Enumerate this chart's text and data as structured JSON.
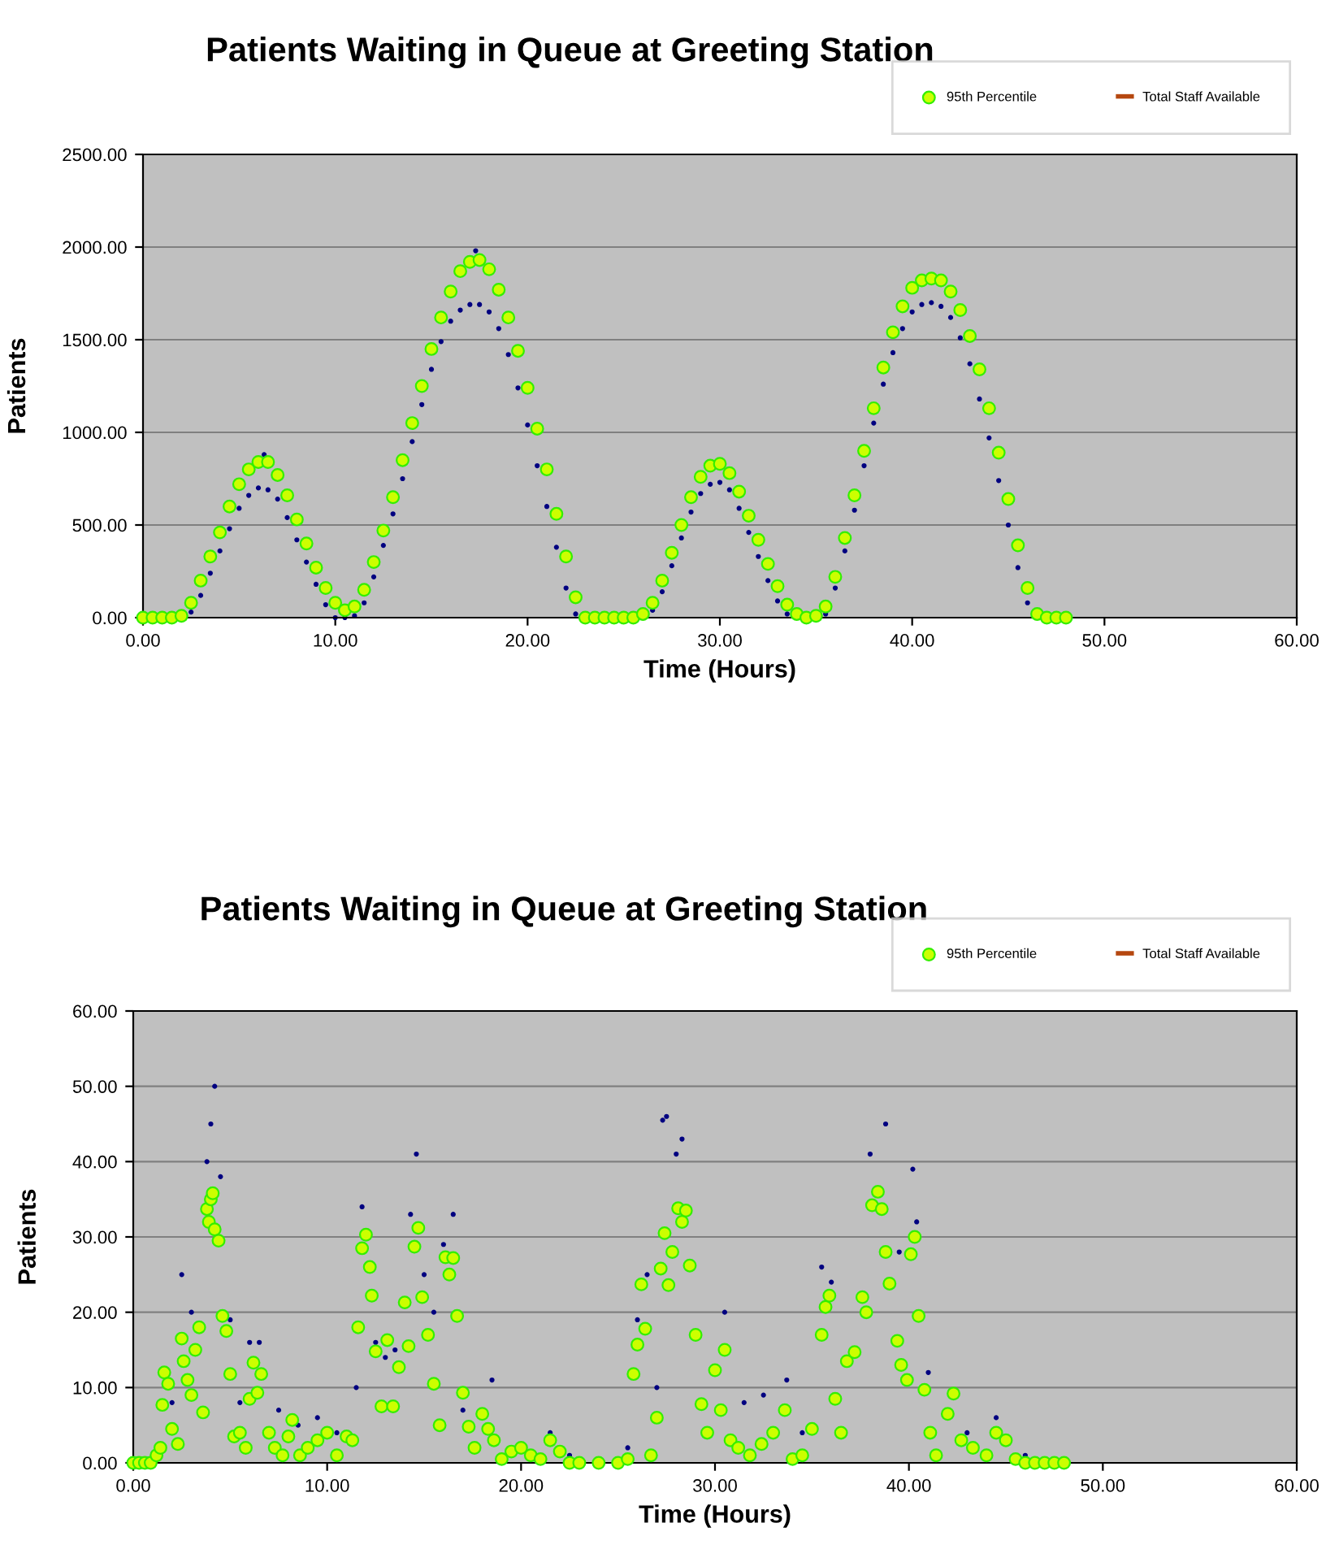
{
  "chart_data": [
    {
      "type": "scatter",
      "title": "Patients Waiting in Queue at Greeting Station",
      "xlabel": "Time (Hours)",
      "ylabel": "Patients",
      "xlim": [
        0,
        60
      ],
      "xticks": [
        {
          "value": 0,
          "label": "0.00"
        },
        {
          "value": 10,
          "label": "10.00"
        },
        {
          "value": 20,
          "label": "20.00"
        },
        {
          "value": 30,
          "label": "30.00"
        },
        {
          "value": 40,
          "label": "40.00"
        },
        {
          "value": 50,
          "label": "50.00"
        },
        {
          "value": 60,
          "label": "60.00"
        }
      ],
      "ylim": [
        0,
        2500
      ],
      "yticks": [
        {
          "value": 0,
          "label": "0.00"
        },
        {
          "value": 500,
          "label": "500.00"
        },
        {
          "value": 1000,
          "label": "1000.00"
        },
        {
          "value": 1500,
          "label": "1500.00"
        },
        {
          "value": 2000,
          "label": "2000.00"
        },
        {
          "value": 2500,
          "label": "2500.00"
        }
      ],
      "grid": "y",
      "legend": "top right",
      "series": [
        {
          "color": "#000080",
          "marker": "circle",
          "x": [
            2.5,
            3,
            3.5,
            4,
            4.5,
            5,
            5.5,
            6,
            6.3,
            6.5,
            7,
            7.5,
            8,
            8.5,
            9,
            9.5,
            10,
            10.5,
            11,
            11.5,
            12,
            12.5,
            13,
            13.5,
            14,
            14.5,
            15,
            15.5,
            16,
            16.5,
            17,
            17.3,
            17.5,
            18,
            18.5,
            19,
            19.5,
            20,
            20.5,
            21,
            21.5,
            22,
            22.5,
            26.5,
            27,
            27.5,
            28,
            28.5,
            29,
            29.5,
            30,
            30.5,
            31,
            31.5,
            32,
            32.5,
            33,
            33.5,
            35.5,
            36,
            36.5,
            37,
            37.5,
            38,
            38.5,
            39,
            39.5,
            40,
            40.5,
            41,
            41.5,
            42,
            42.5,
            43,
            43.5,
            44,
            44.5,
            45,
            45.5,
            46
          ],
          "values": [
            30,
            120,
            240,
            360,
            480,
            590,
            660,
            700,
            880,
            690,
            640,
            540,
            420,
            300,
            180,
            70,
            0,
            0,
            10,
            80,
            220,
            390,
            560,
            750,
            950,
            1150,
            1340,
            1490,
            1600,
            1660,
            1690,
            1980,
            1690,
            1650,
            1560,
            1420,
            1240,
            1040,
            820,
            600,
            380,
            160,
            20,
            40,
            140,
            280,
            430,
            570,
            670,
            720,
            730,
            690,
            590,
            460,
            330,
            200,
            90,
            20,
            20,
            160,
            360,
            580,
            820,
            1050,
            1260,
            1430,
            1560,
            1650,
            1690,
            1700,
            1680,
            1620,
            1510,
            1370,
            1180,
            970,
            740,
            500,
            270,
            80
          ]
        },
        {
          "name": "95th Percentile",
          "color": "#ccff00",
          "marker": "circle",
          "x": [
            0,
            0.5,
            1,
            1.5,
            2,
            2.5,
            3,
            3.5,
            4,
            4.5,
            5,
            5.5,
            6,
            6.5,
            7,
            7.5,
            8,
            8.5,
            9,
            9.5,
            10,
            10.5,
            11,
            11.5,
            12,
            12.5,
            13,
            13.5,
            14,
            14.5,
            15,
            15.5,
            16,
            16.5,
            17,
            17.5,
            18,
            18.5,
            19,
            19.5,
            20,
            20.5,
            21,
            21.5,
            22,
            22.5,
            23,
            23.5,
            24,
            24.5,
            25,
            25.5,
            26,
            26.5,
            27,
            27.5,
            28,
            28.5,
            29,
            29.5,
            30,
            30.5,
            31,
            31.5,
            32,
            32.5,
            33,
            33.5,
            34,
            34.5,
            35,
            35.5,
            36,
            36.5,
            37,
            37.5,
            38,
            38.5,
            39,
            39.5,
            40,
            40.5,
            41,
            41.5,
            42,
            42.5,
            43,
            43.5,
            44,
            44.5,
            45,
            45.5,
            46,
            46.5,
            47,
            47.5,
            48
          ],
          "values": [
            0,
            0,
            0,
            0,
            10,
            80,
            200,
            330,
            460,
            600,
            720,
            800,
            840,
            840,
            770,
            660,
            530,
            400,
            270,
            160,
            80,
            40,
            60,
            150,
            300,
            470,
            650,
            850,
            1050,
            1250,
            1450,
            1620,
            1760,
            1870,
            1920,
            1930,
            1880,
            1770,
            1620,
            1440,
            1240,
            1020,
            800,
            560,
            330,
            110,
            0,
            0,
            0,
            0,
            0,
            0,
            20,
            80,
            200,
            350,
            500,
            650,
            760,
            820,
            830,
            780,
            680,
            550,
            420,
            290,
            170,
            70,
            20,
            0,
            10,
            60,
            220,
            430,
            660,
            900,
            1130,
            1350,
            1540,
            1680,
            1780,
            1820,
            1830,
            1820,
            1760,
            1660,
            1520,
            1340,
            1130,
            890,
            640,
            390,
            160,
            20,
            0,
            0,
            0
          ]
        },
        {
          "type": "line",
          "name": "Total Staff Available",
          "color": "#b5470f",
          "marker": "none"
        }
      ]
    },
    {
      "type": "scatter",
      "title": "Patients Waiting in Queue at Greeting Station",
      "xlabel": "Time (Hours)",
      "ylabel": "Patients",
      "xlim": [
        0,
        60
      ],
      "xticks": [
        {
          "value": 0,
          "label": "0.00"
        },
        {
          "value": 10,
          "label": "10.00"
        },
        {
          "value": 20,
          "label": "20.00"
        },
        {
          "value": 30,
          "label": "30.00"
        },
        {
          "value": 40,
          "label": "40.00"
        },
        {
          "value": 50,
          "label": "50.00"
        },
        {
          "value": 60,
          "label": "60.00"
        }
      ],
      "ylim": [
        0,
        60
      ],
      "yticks": [
        {
          "value": 0,
          "label": "0.00"
        },
        {
          "value": 10,
          "label": "10.00"
        },
        {
          "value": 20,
          "label": "20.00"
        },
        {
          "value": 30,
          "label": "30.00"
        },
        {
          "value": 40,
          "label": "40.00"
        },
        {
          "value": 50,
          "label": "50.00"
        },
        {
          "value": 60,
          "label": "60.00"
        }
      ],
      "grid": "y",
      "legend": "top right",
      "series": [
        {
          "color": "#000080",
          "marker": "circle",
          "x": [
            2,
            2.5,
            3,
            3.8,
            4,
            4.2,
            4.5,
            5,
            5.5,
            6,
            6.5,
            7.5,
            8.5,
            9.5,
            10.5,
            11.5,
            11.8,
            12.5,
            13,
            13.5,
            14.3,
            14.6,
            15,
            15.5,
            16,
            16.5,
            17,
            18.5,
            21.5,
            22.5,
            25.5,
            26,
            26.5,
            27,
            27.3,
            27.5,
            28,
            28.3,
            30.5,
            31.5,
            32.5,
            33.7,
            34.5,
            35.5,
            36,
            38,
            38.8,
            39.5,
            40.2,
            40.4,
            41,
            43,
            44.5,
            46
          ],
          "values": [
            8,
            25,
            20,
            40,
            45,
            50,
            38,
            19,
            8,
            16,
            16,
            7,
            5,
            6,
            4,
            10,
            34,
            16,
            14,
            15,
            33,
            41,
            25,
            20,
            29,
            33,
            7,
            11,
            4,
            1,
            2,
            19,
            25,
            10,
            45.5,
            46,
            41,
            43,
            20,
            8,
            9,
            11,
            4,
            26,
            24,
            41,
            45,
            28,
            39,
            32,
            12,
            4,
            6,
            1
          ]
        },
        {
          "name": "95th Percentile",
          "color": "#ccff00",
          "marker": "circle",
          "x": [
            0,
            0.3,
            0.6,
            0.9,
            1.2,
            1.4,
            1.5,
            1.6,
            1.8,
            2,
            2.3,
            2.5,
            2.6,
            2.8,
            3,
            3.2,
            3.4,
            3.6,
            3.8,
            3.9,
            4,
            4.1,
            4.2,
            4.4,
            4.6,
            4.8,
            5,
            5.2,
            5.5,
            5.8,
            6,
            6.2,
            6.4,
            6.6,
            7,
            7.3,
            7.7,
            8,
            8.2,
            8.6,
            9,
            9.5,
            10,
            10.5,
            11,
            11.3,
            11.6,
            11.8,
            12,
            12.2,
            12.3,
            12.5,
            12.8,
            13.1,
            13.4,
            13.7,
            14,
            14.2,
            14.5,
            14.7,
            14.9,
            15.2,
            15.5,
            15.8,
            16.1,
            16.3,
            16.5,
            16.7,
            17,
            17.3,
            17.6,
            18,
            18.3,
            18.6,
            19,
            19.5,
            20,
            20.5,
            21,
            21.5,
            22,
            22.5,
            23,
            24,
            25,
            25.5,
            25.8,
            26,
            26.2,
            26.4,
            26.7,
            27,
            27.2,
            27.4,
            27.6,
            27.8,
            28.1,
            28.3,
            28.5,
            28.7,
            29,
            29.3,
            29.6,
            30,
            30.3,
            30.5,
            30.8,
            31.2,
            31.8,
            32.4,
            33,
            33.6,
            34,
            34.5,
            35,
            35.5,
            35.7,
            35.9,
            36.2,
            36.5,
            36.8,
            37.2,
            37.6,
            37.8,
            38.1,
            38.4,
            38.6,
            38.8,
            39,
            39.4,
            39.6,
            39.9,
            40.1,
            40.3,
            40.5,
            40.8,
            41.1,
            41.4,
            42,
            42.3,
            42.7,
            43.3,
            44,
            44.5,
            45,
            45.5,
            46,
            46.5,
            47,
            47.5,
            48
          ],
          "values": [
            0,
            0,
            0,
            0,
            1,
            2,
            7.7,
            12,
            10.5,
            4.5,
            2.5,
            16.5,
            13.5,
            11,
            9,
            15,
            18,
            6.7,
            33.7,
            32,
            35,
            35.8,
            31,
            29.5,
            19.5,
            17.5,
            11.8,
            3.5,
            4,
            2,
            8.5,
            13.3,
            9.3,
            11.8,
            4,
            2,
            1,
            3.5,
            5.7,
            1,
            2,
            3,
            4,
            1,
            3.5,
            3,
            18,
            28.5,
            30.3,
            26,
            22.2,
            14.8,
            7.5,
            16.3,
            7.5,
            12.7,
            21.3,
            15.5,
            28.7,
            31.2,
            22,
            17,
            10.5,
            5,
            27.3,
            25,
            27.2,
            19.5,
            9.3,
            4.8,
            2,
            6.5,
            4.5,
            3,
            0.5,
            1.5,
            2,
            1,
            0.5,
            3,
            1.5,
            0,
            0,
            0,
            0,
            0.5,
            11.8,
            15.7,
            23.7,
            17.8,
            1,
            6,
            25.8,
            30.5,
            23.6,
            28,
            33.8,
            32,
            33.5,
            26.2,
            17,
            7.8,
            4,
            12.3,
            7,
            15,
            3,
            2,
            1,
            2.5,
            4,
            7,
            0.5,
            1,
            4.5,
            17,
            20.7,
            22.2,
            8.5,
            4,
            13.5,
            14.7,
            22,
            20,
            34.2,
            36,
            33.7,
            28,
            23.8,
            16.2,
            13,
            11,
            27.7,
            30,
            19.5,
            9.7,
            4,
            1,
            6.5,
            9.2,
            3,
            2,
            1,
            4,
            3,
            0.5,
            0,
            0,
            0,
            0,
            0
          ]
        },
        {
          "type": "line",
          "name": "Total Staff Available",
          "color": "#b5470f",
          "marker": "none"
        }
      ]
    }
  ]
}
